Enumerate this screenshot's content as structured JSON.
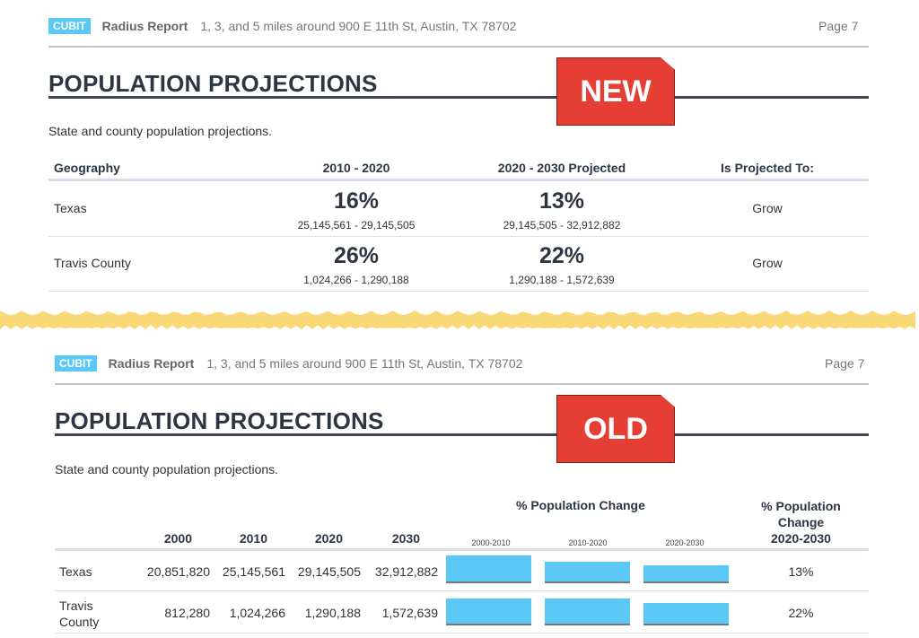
{
  "header": {
    "logo": "CUBIT",
    "report": "Radius Report",
    "location": "1, 3, and 5 miles around 900 E 11th St, Austin, TX 78702",
    "page": "Page 7"
  },
  "new_section": {
    "title": "POPULATION PROJECTIONS",
    "badge": "NEW",
    "subtitle": "State and county population projections.",
    "columns": [
      "Geography",
      "2010 - 2020",
      "2020 - 2030 Projected",
      "Is Projected To:"
    ],
    "rows": [
      {
        "geo": "Texas",
        "p1": "16%",
        "r1": "25,145,561 - 29,145,505",
        "p2": "13%",
        "r2": "29,145,505 - 32,912,882",
        "trend": "Grow"
      },
      {
        "geo": "Travis County",
        "p1": "26%",
        "r1": "1,024,266 - 1,290,188",
        "p2": "22%",
        "r2": "1,290,188 - 1,572,639",
        "trend": "Grow"
      }
    ]
  },
  "old_section": {
    "title": "POPULATION PROJECTIONS",
    "badge": "OLD",
    "subtitle": "State and county population projections.",
    "columns": [
      "2000",
      "2010",
      "2020",
      "2030"
    ],
    "chart_header": "% Population Change",
    "chart_periods": [
      "2000-2010",
      "2010-2020",
      "2020-2030"
    ],
    "last_column": [
      "% Population",
      "Change",
      "2020-2030"
    ],
    "rows": [
      {
        "geo": [
          "Texas"
        ],
        "values": [
          "20,851,820",
          "25,145,561",
          "29,145,505",
          "32,912,882"
        ],
        "change_pct": [
          20.6,
          16.0,
          13.0
        ],
        "last": "13%"
      },
      {
        "geo": [
          "Travis",
          "County"
        ],
        "values": [
          "812,280",
          "1,024,266",
          "1,290,188",
          "1,572,639"
        ],
        "change_pct": [
          26.1,
          26.0,
          21.8
        ],
        "last": "22%"
      }
    ]
  },
  "colors": {
    "accent": "#5bc8f5",
    "badge": "#e53e35",
    "torn_edge": "#f9d878",
    "text": "#2d3543"
  }
}
